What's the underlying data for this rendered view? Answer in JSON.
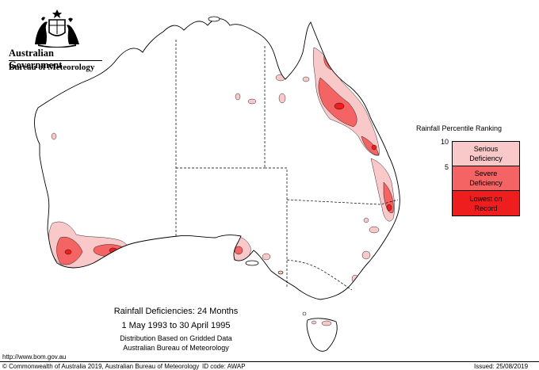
{
  "header": {
    "government": "Australian Government",
    "bureau": "Bureau of Meteorology",
    "crest_icon": "commonwealth-coat-of-arms"
  },
  "map": {
    "region": "Australia",
    "colors": {
      "land": "#ffffff",
      "outline": "#000000",
      "state_border": "#000000"
    },
    "deficiency_regions": [
      "Western Australia south-west",
      "South Australia south-east",
      "Queensland east coast",
      "New South Wales north coast",
      "Tasmania north"
    ]
  },
  "legend": {
    "title": "Rainfall Percentile Ranking",
    "ticks": [
      "10",
      "5"
    ],
    "categories": [
      {
        "label": "Serious\nDeficiency",
        "color": "#f9c8c8"
      },
      {
        "label": "Severe\nDeficiency",
        "color": "#f46464"
      },
      {
        "label": "Lowest on\nRecord",
        "color": "#ee1e1e"
      }
    ]
  },
  "caption": {
    "title": "Rainfall Deficiencies: 24 Months",
    "dates": "1 May 1993 to 30 April 1995",
    "distribution": "Distribution Based on Gridded Data",
    "organisation": "Australian Bureau of Meteorology"
  },
  "footer": {
    "url": "http://www.bom.gov.au",
    "copyright": "© Commonwealth of Australia 2019, Australian Bureau of Meteorology",
    "id_code": "ID code: AWAP",
    "issued": "Issued: 25/08/2019"
  }
}
